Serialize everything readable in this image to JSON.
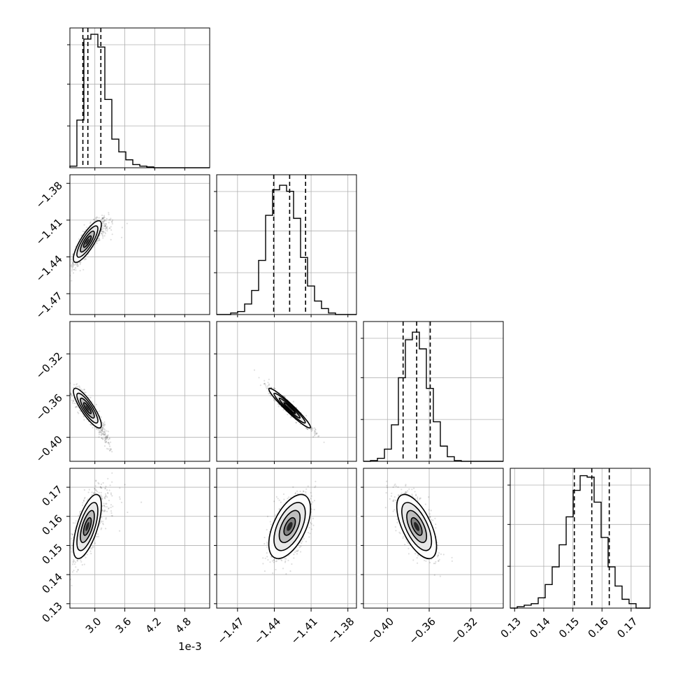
{
  "chart_data": {
    "type": "corner",
    "title": "",
    "parameters": [
      "",
      "",
      "",
      ""
    ],
    "x_offset_label": "1e-3",
    "grid": true,
    "colors": {
      "line": "#000000",
      "grid": "#b0b0b0",
      "points": "#000000",
      "frame": "#000000"
    },
    "axes": [
      {
        "range": [
          2.5,
          5.3
        ],
        "ticks": [
          3.0,
          3.6,
          4.2,
          4.8
        ],
        "tick_labels": [
          "3.0",
          "3.6",
          "4.2",
          "4.8"
        ]
      },
      {
        "range": [
          -1.487,
          -1.373
        ],
        "ticks": [
          -1.47,
          -1.44,
          -1.41,
          -1.38
        ],
        "tick_labels": [
          "−1.47",
          "−1.44",
          "−1.41",
          "−1.38"
        ]
      },
      {
        "range": [
          -0.423,
          -0.289
        ],
        "ticks": [
          -0.4,
          -0.36,
          -0.32
        ],
        "tick_labels": [
          "−0.40",
          "−0.36",
          "−0.32"
        ]
      },
      {
        "range": [
          0.1285,
          0.1765
        ],
        "ticks": [
          0.13,
          0.14,
          0.15,
          0.16,
          0.17
        ],
        "tick_labels": [
          "0.13",
          "0.14",
          "0.15",
          "0.16",
          "0.17"
        ]
      }
    ],
    "histograms": [
      {
        "name": "",
        "bin_edges_start": 2.5,
        "bin_width": 0.14,
        "heights": [
          1,
          30,
          81,
          84,
          76,
          43,
          18,
          10,
          5,
          2,
          1,
          0.5,
          0,
          0,
          0,
          0,
          0,
          0,
          0,
          0
        ],
        "ymax": 88,
        "quantiles": [
          2.76,
          2.86,
          3.12
        ],
        "ytick_fractions": [
          0.34,
          0.68,
          1.0
        ]
      },
      {
        "name": "",
        "bin_edges_start": -1.487,
        "bin_width": 0.0057,
        "heights": [
          0,
          0,
          1,
          2,
          7,
          16,
          36,
          66,
          83,
          86,
          82,
          64,
          38,
          19,
          9,
          4,
          1,
          0,
          0,
          0
        ],
        "ymax": 93,
        "quantiles": [
          -1.4405,
          -1.4275,
          -1.4145
        ],
        "ytick_fractions": [
          0.34,
          0.68,
          1.0
        ]
      },
      {
        "name": "",
        "bin_edges_start": -0.423,
        "bin_width": 0.0067,
        "heights": [
          0,
          0.5,
          2,
          8,
          24,
          55,
          80,
          85,
          74,
          48,
          26,
          10,
          3,
          0.5,
          0,
          0,
          0,
          0,
          0,
          0
        ],
        "ymax": 92,
        "quantiles": [
          -0.385,
          -0.372,
          -0.359
        ],
        "ytick_fractions": [
          0.34,
          0.68,
          1.0
        ]
      },
      {
        "name": "",
        "bin_edges_start": 0.1285,
        "bin_width": 0.0024,
        "heights": [
          0,
          1,
          2,
          3,
          7,
          16,
          28,
          43,
          62,
          80,
          90,
          89,
          72,
          48,
          28,
          15,
          6,
          3,
          0,
          0
        ],
        "ymax": 95,
        "quantiles": [
          0.1505,
          0.1565,
          0.1625
        ],
        "ytick_fractions": [
          0.34,
          0.68,
          1.0
        ]
      }
    ],
    "pairs": [
      {
        "x_param": 0,
        "y_param": 1,
        "center": [
          2.85,
          -1.4275
        ],
        "sigma": [
          0.14,
          0.0085
        ],
        "rho": 0.82,
        "banana": 0.9
      },
      {
        "x_param": 0,
        "y_param": 2,
        "center": [
          2.85,
          -0.372
        ],
        "sigma": [
          0.14,
          0.0095
        ],
        "rho": -0.85,
        "banana": -0.9
      },
      {
        "x_param": 1,
        "y_param": 2,
        "center": [
          -1.4275,
          -0.372
        ],
        "sigma": [
          0.0085,
          0.0095
        ],
        "rho": -0.96,
        "banana": 0
      },
      {
        "x_param": 0,
        "y_param": 3,
        "center": [
          2.85,
          0.1565
        ],
        "sigma": [
          0.14,
          0.0055
        ],
        "rho": 0.65,
        "banana": 0.4
      },
      {
        "x_param": 1,
        "y_param": 3,
        "center": [
          -1.4275,
          0.1565
        ],
        "sigma": [
          0.0085,
          0.0055
        ],
        "rho": 0.55,
        "banana": 0
      },
      {
        "x_param": 2,
        "y_param": 3,
        "center": [
          -0.372,
          0.1565
        ],
        "sigma": [
          0.0095,
          0.0055
        ],
        "rho": -0.62,
        "banana": 0
      }
    ]
  }
}
